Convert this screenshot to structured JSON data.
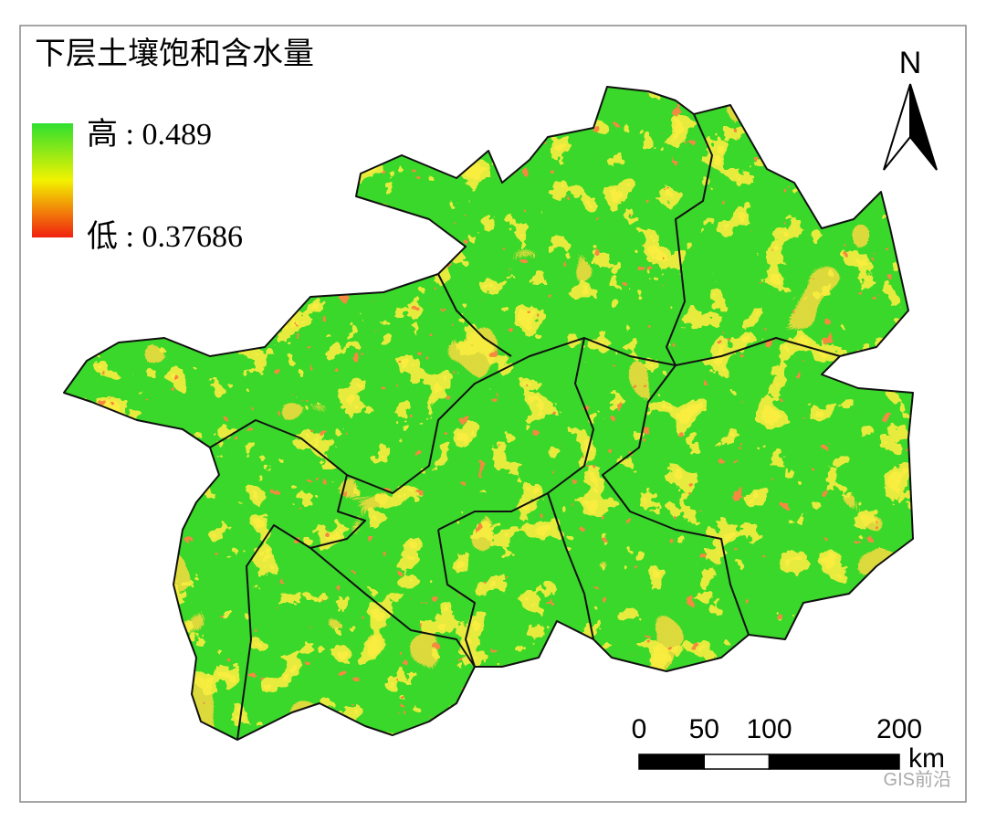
{
  "title": "下层土壤饱和含水量",
  "legend": {
    "high": "高 : 0.489",
    "low": "低 : 0.37686"
  },
  "north": "N",
  "scale": {
    "ticks": [
      0,
      50,
      100,
      200
    ],
    "unit": "km"
  },
  "watermark": "GIS前沿"
}
